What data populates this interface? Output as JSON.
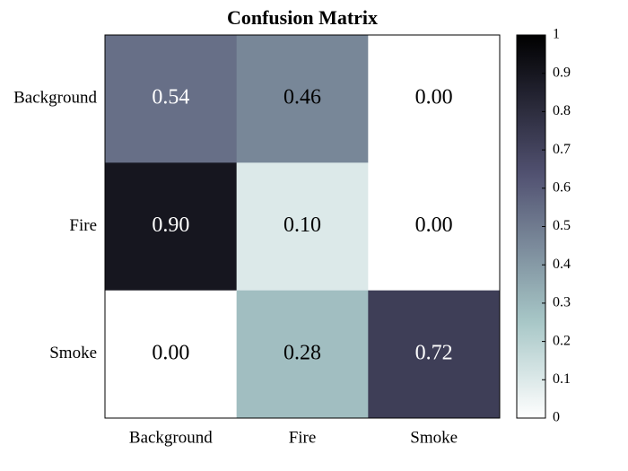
{
  "chart_data": {
    "type": "heatmap",
    "title": "Confusion Matrix",
    "x_categories": [
      "Background",
      "Fire",
      "Smoke"
    ],
    "y_categories": [
      "Background",
      "Fire",
      "Smoke"
    ],
    "values": [
      [
        0.54,
        0.46,
        0.0
      ],
      [
        0.9,
        0.1,
        0.0
      ],
      [
        0.0,
        0.28,
        0.72
      ]
    ],
    "value_labels": [
      [
        "0.54",
        "0.46",
        "0.00"
      ],
      [
        "0.90",
        "0.10",
        "0.00"
      ],
      [
        "0.00",
        "0.28",
        "0.72"
      ]
    ],
    "colormap": "bone_r",
    "clim": [
      0,
      1
    ],
    "cticks": [
      0,
      0.1,
      0.2,
      0.3,
      0.4,
      0.5,
      0.6,
      0.7,
      0.8,
      0.9,
      1
    ]
  }
}
